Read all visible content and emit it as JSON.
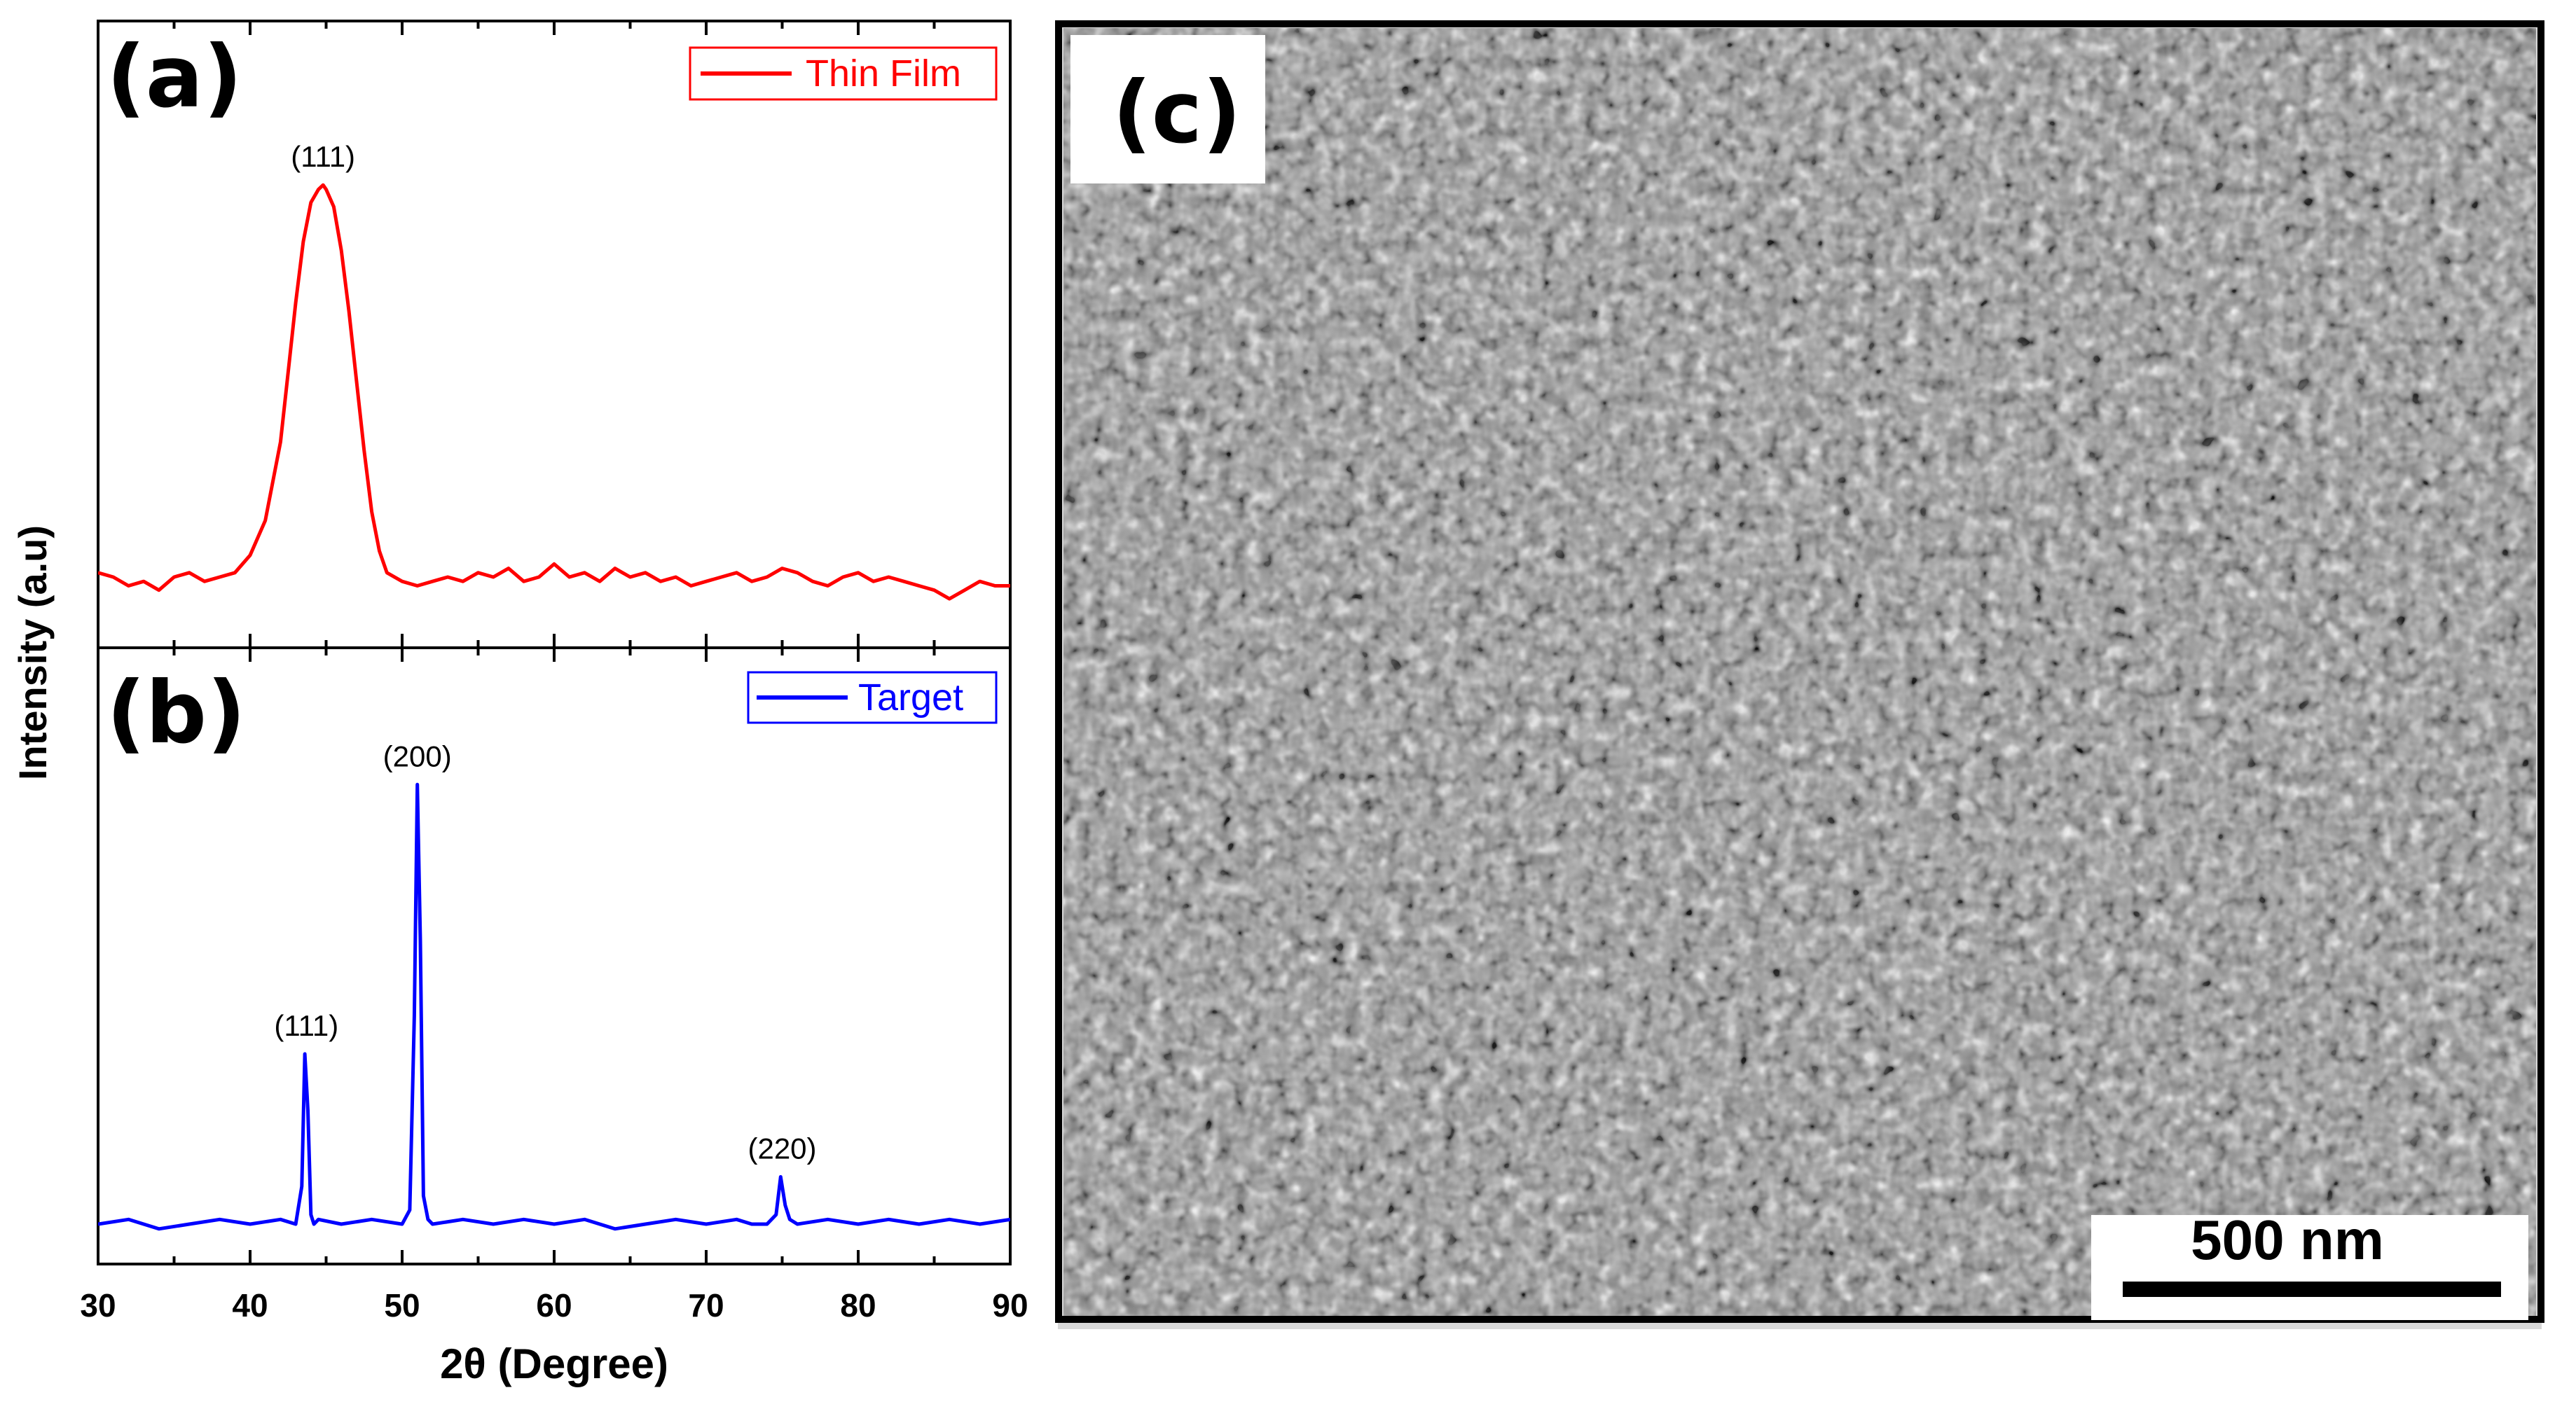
{
  "chart_data": [
    {
      "type": "line",
      "panel_label": "(a)",
      "title": "",
      "xlabel": "2θ (Degree)",
      "ylabel": "Intensity (a.u)",
      "xlim": [
        30,
        90
      ],
      "ylim": [
        0,
        100
      ],
      "legend": {
        "position": "top-right",
        "entries": [
          "Thin Film"
        ]
      },
      "series": [
        {
          "name": "Thin Film",
          "color": "#ff0000",
          "x": [
            30,
            31,
            32,
            33,
            34,
            35,
            36,
            37,
            38,
            39,
            40,
            41,
            42,
            42.5,
            43,
            43.5,
            44,
            44.5,
            44.8,
            45,
            45.5,
            46,
            46.5,
            47,
            47.5,
            48,
            48.5,
            49,
            50,
            51,
            52,
            53,
            54,
            55,
            56,
            57,
            58,
            59,
            60,
            61,
            62,
            63,
            64,
            65,
            66,
            67,
            68,
            69,
            70,
            71,
            72,
            73,
            74,
            75,
            76,
            77,
            78,
            79,
            80,
            81,
            82,
            83,
            84,
            85,
            86,
            87,
            88,
            89,
            90
          ],
          "y": [
            10,
            9,
            7,
            8,
            6,
            9,
            10,
            8,
            9,
            10,
            14,
            22,
            40,
            56,
            72,
            86,
            95,
            98,
            99,
            98,
            94,
            84,
            70,
            54,
            38,
            24,
            15,
            10,
            8,
            7,
            8,
            9,
            8,
            10,
            9,
            11,
            8,
            9,
            12,
            9,
            10,
            8,
            11,
            9,
            10,
            8,
            9,
            7,
            8,
            9,
            10,
            8,
            9,
            11,
            10,
            8,
            7,
            9,
            10,
            8,
            9,
            8,
            7,
            6,
            4,
            6,
            8,
            7,
            7
          ]
        }
      ],
      "annotations": [
        {
          "x": 44.8,
          "text": "(111)"
        }
      ]
    },
    {
      "type": "line",
      "panel_label": "(b)",
      "title": "",
      "xlabel": "2θ (Degree)",
      "ylabel": "Intensity (a.u)",
      "xlim": [
        30,
        90
      ],
      "ylim": [
        0,
        100
      ],
      "xticks": [
        30,
        40,
        50,
        60,
        70,
        80,
        90
      ],
      "legend": {
        "position": "top-right",
        "entries": [
          "Target"
        ]
      },
      "series": [
        {
          "name": "Target",
          "color": "#0000ff",
          "x": [
            30,
            32,
            34,
            36,
            38,
            40,
            42,
            43,
            43.4,
            43.6,
            43.8,
            44,
            44.2,
            44.5,
            46,
            48,
            50,
            50.5,
            50.8,
            51,
            51.2,
            51.4,
            51.7,
            52,
            54,
            56,
            58,
            60,
            62,
            64,
            66,
            68,
            70,
            72,
            73,
            74,
            74.6,
            74.9,
            75.2,
            75.5,
            76,
            78,
            80,
            82,
            84,
            86,
            88,
            90
          ],
          "y": [
            4,
            5,
            3,
            4,
            5,
            4,
            5,
            4,
            12,
            40,
            28,
            6,
            4,
            5,
            4,
            5,
            4,
            7,
            48,
            97,
            64,
            10,
            5,
            4,
            5,
            4,
            5,
            4,
            5,
            3,
            4,
            5,
            4,
            5,
            4,
            4,
            6,
            14,
            8,
            5,
            4,
            5,
            4,
            5,
            4,
            5,
            4,
            5
          ]
        }
      ],
      "annotations": [
        {
          "x": 43.7,
          "text": "(111)"
        },
        {
          "x": 51.0,
          "text": "(200)"
        },
        {
          "x": 75.0,
          "text": "(220)"
        }
      ]
    }
  ],
  "sem": {
    "panel_label": "(c)",
    "scale_bar_label": "500 nm"
  },
  "colors": {
    "thin_film": "#ff0000",
    "target": "#0000ff"
  }
}
